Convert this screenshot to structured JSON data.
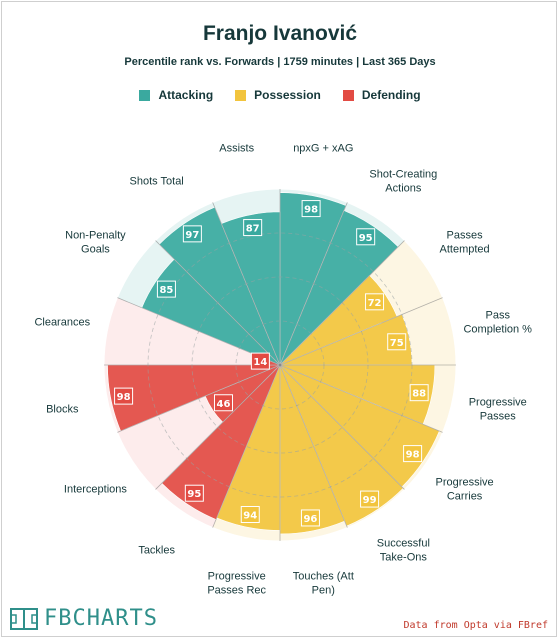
{
  "header": {
    "title": "Franjo Ivanović",
    "subtitle": "Percentile rank vs. Forwards | 1759 minutes | Last 365 Days"
  },
  "legend": [
    {
      "label": "Attacking",
      "color": "#3aa99f"
    },
    {
      "label": "Possession",
      "color": "#f2c43d"
    },
    {
      "label": "Defending",
      "color": "#e24b43"
    }
  ],
  "footer": {
    "logo_text": "FBCHARTS",
    "credit": "Data from Opta via FBref"
  },
  "chart_data": {
    "type": "radar",
    "scale_max": 100,
    "categories_order": "clockwise from top",
    "colors": {
      "Attacking": "#3aa99f",
      "Possession": "#f2c43d",
      "Defending": "#e24b43",
      "Attacking_bg": "#e6f4f3",
      "Possession_bg": "#fdf6e3",
      "Defending_bg": "#fdecec"
    },
    "metrics": [
      {
        "label": [
          "npxG + xAG"
        ],
        "value": 98,
        "group": "Attacking"
      },
      {
        "label": [
          "Shot-Creating",
          "Actions"
        ],
        "value": 95,
        "group": "Attacking"
      },
      {
        "label": [
          "Passes",
          "Attempted"
        ],
        "value": 72,
        "group": "Possession"
      },
      {
        "label": [
          "Pass",
          "Completion %"
        ],
        "value": 75,
        "group": "Possession"
      },
      {
        "label": [
          "Progressive",
          "Passes"
        ],
        "value": 88,
        "group": "Possession"
      },
      {
        "label": [
          "Progressive",
          "Carries"
        ],
        "value": 98,
        "group": "Possession"
      },
      {
        "label": [
          "Successful",
          "Take-Ons"
        ],
        "value": 99,
        "group": "Possession"
      },
      {
        "label": [
          "Touches (Att",
          "Pen)"
        ],
        "value": 96,
        "group": "Possession"
      },
      {
        "label": [
          "Progressive",
          "Passes Rec"
        ],
        "value": 94,
        "group": "Possession"
      },
      {
        "label": [
          "Tackles"
        ],
        "value": 95,
        "group": "Defending"
      },
      {
        "label": [
          "Interceptions"
        ],
        "value": 46,
        "group": "Defending"
      },
      {
        "label": [
          "Blocks"
        ],
        "value": 98,
        "group": "Defending"
      },
      {
        "label": [
          "Clearances"
        ],
        "value": 14,
        "group": "Defending"
      },
      {
        "label": [
          "Non-Penalty",
          "Goals"
        ],
        "value": 85,
        "group": "Attacking"
      },
      {
        "label": [
          "Shots Total"
        ],
        "value": 97,
        "group": "Attacking"
      },
      {
        "label": [
          "Assists"
        ],
        "value": 87,
        "group": "Attacking"
      }
    ]
  }
}
